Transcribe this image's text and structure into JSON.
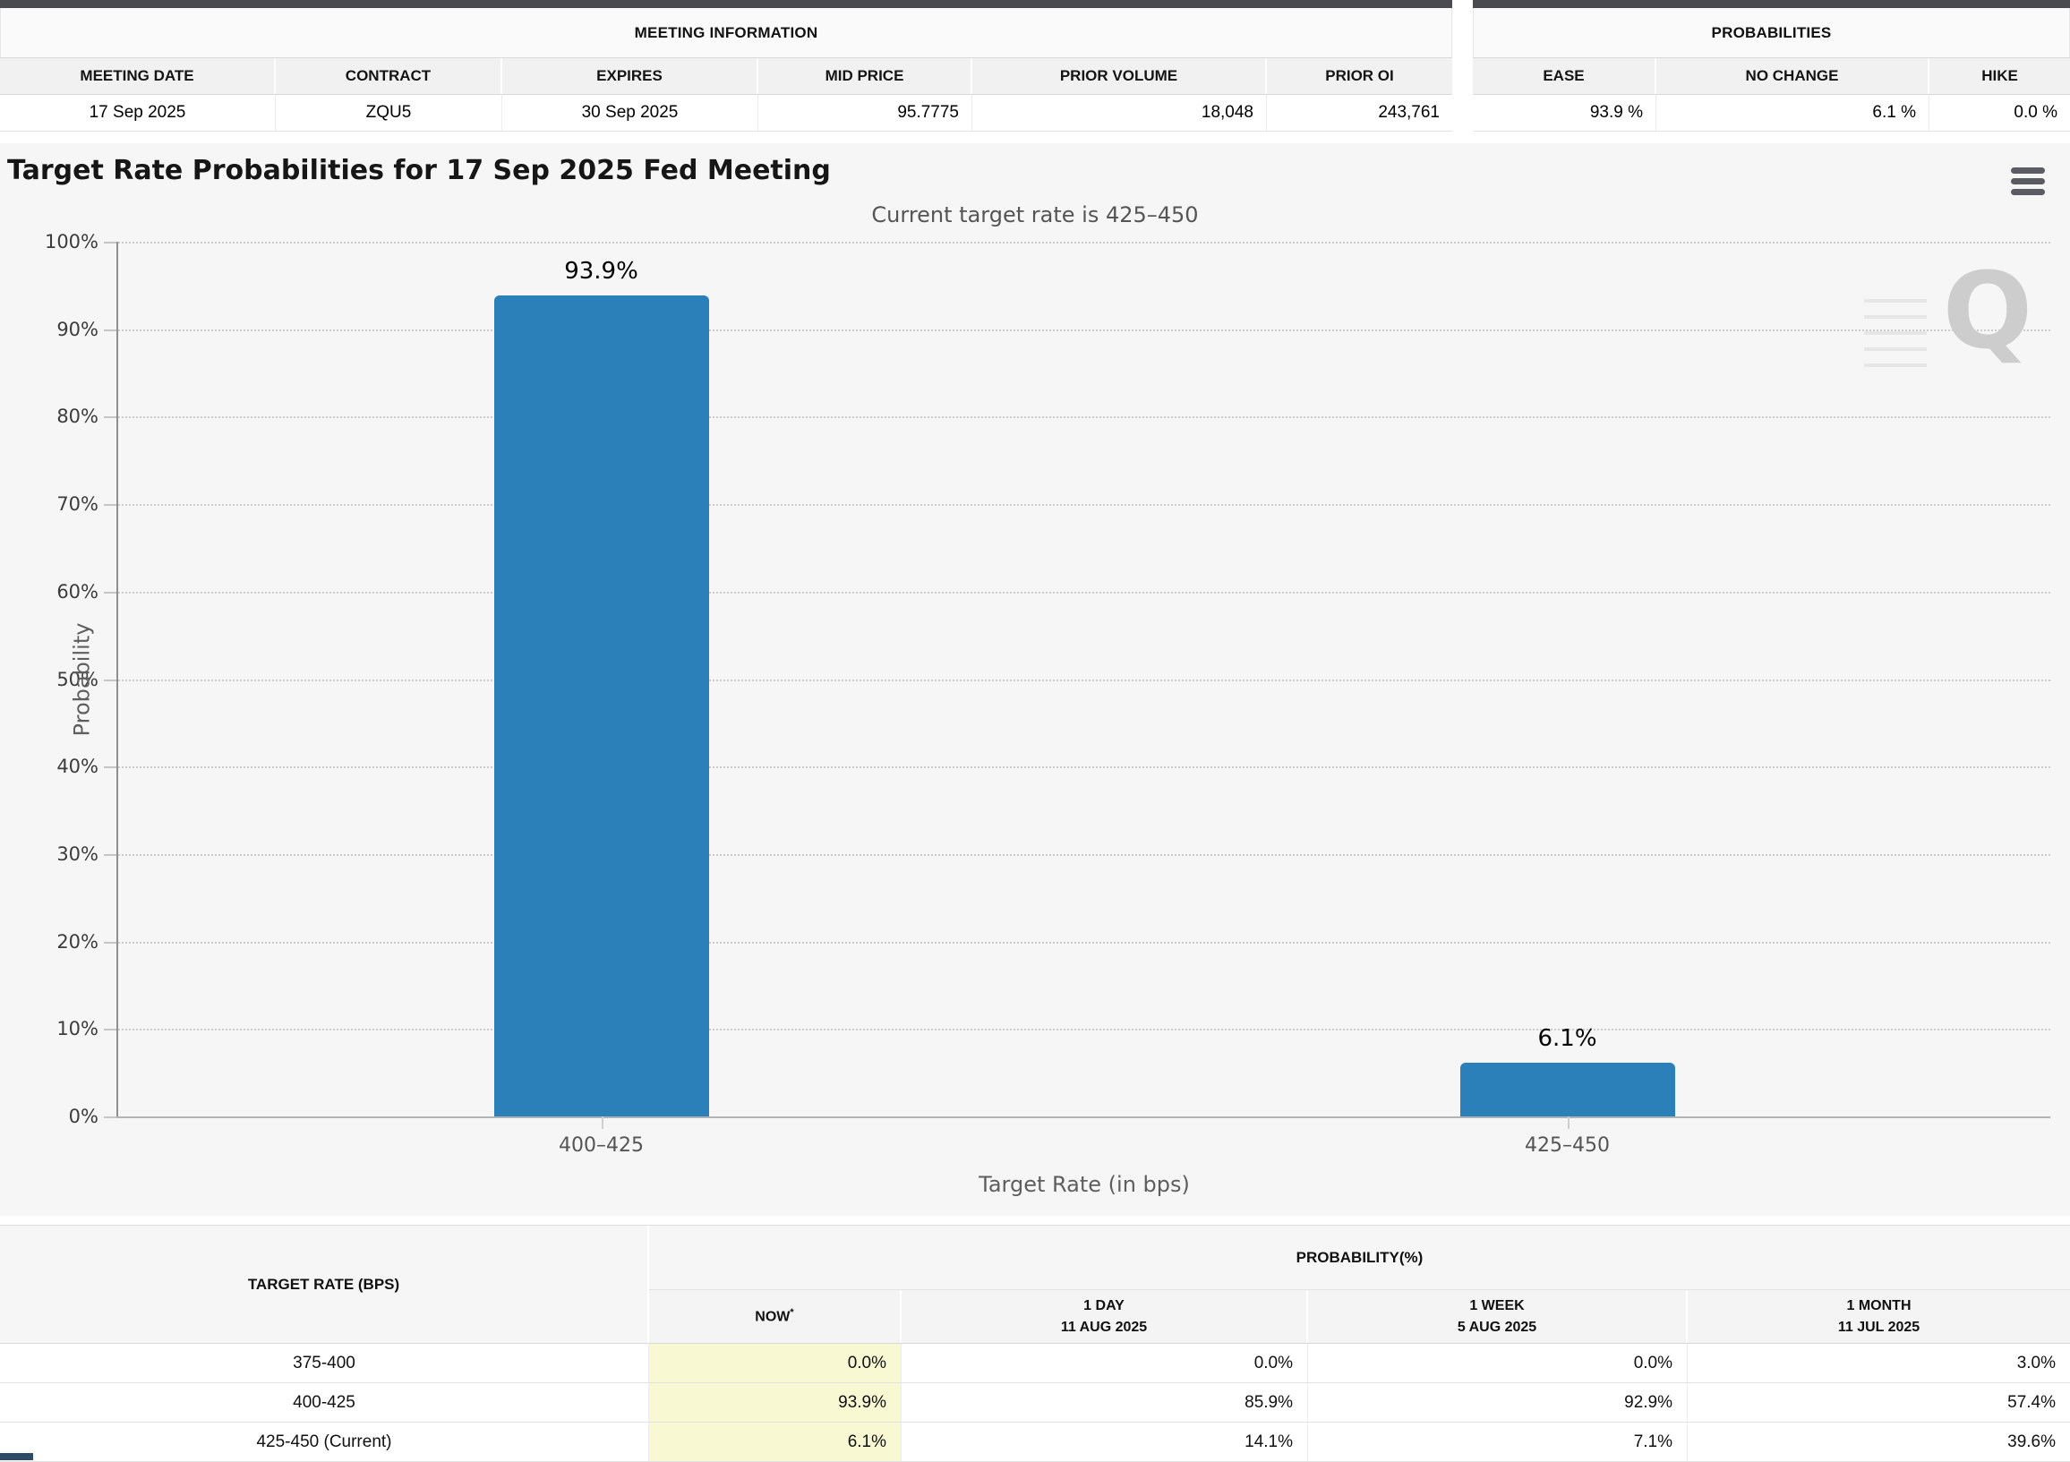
{
  "meeting_info": {
    "title": "MEETING INFORMATION",
    "columns": [
      "MEETING DATE",
      "CONTRACT",
      "EXPIRES",
      "MID PRICE",
      "PRIOR VOLUME",
      "PRIOR OI"
    ],
    "row": {
      "meeting_date": "17 Sep 2025",
      "contract": "ZQU5",
      "expires": "30 Sep 2025",
      "mid_price": "95.7775",
      "prior_volume": "18,048",
      "prior_oi": "243,761"
    }
  },
  "probabilities": {
    "title": "PROBABILITIES",
    "columns": [
      "EASE",
      "NO CHANGE",
      "HIKE"
    ],
    "row": {
      "ease": "93.9 %",
      "no_change": "6.1 %",
      "hike": "0.0 %"
    }
  },
  "chart_data": {
    "type": "bar",
    "title": "Target Rate Probabilities for 17 Sep 2025 Fed Meeting",
    "subtitle": "Current target rate is 425–450",
    "categories": [
      "400–425",
      "425–450"
    ],
    "values": [
      93.9,
      6.1
    ],
    "data_labels": [
      "93.9%",
      "6.1%"
    ],
    "xlabel": "Target Rate (in bps)",
    "ylabel": "Probability",
    "ylim": [
      0,
      100
    ],
    "yticks": [
      "0%",
      "10%",
      "20%",
      "30%",
      "40%",
      "50%",
      "60%",
      "70%",
      "80%",
      "90%",
      "100%"
    ],
    "grid": "horizontal-dotted",
    "legend": "none",
    "bar_color": "#2b80b9",
    "watermark_letter": "Q"
  },
  "probability_table": {
    "corner_header": "TARGET RATE (BPS)",
    "group_header": "PROBABILITY(%)",
    "columns": [
      {
        "label": "NOW",
        "sup": "*",
        "sub": ""
      },
      {
        "label": "1 DAY",
        "sup": "",
        "sub": "11 AUG 2025"
      },
      {
        "label": "1 WEEK",
        "sup": "",
        "sub": "5 AUG 2025"
      },
      {
        "label": "1 MONTH",
        "sup": "",
        "sub": "11 JUL 2025"
      }
    ],
    "rows": [
      {
        "rate": "375-400",
        "now": "0.0%",
        "one_day": "0.0%",
        "one_week": "0.0%",
        "one_month": "3.0%"
      },
      {
        "rate": "400-425",
        "now": "93.9%",
        "one_day": "85.9%",
        "one_week": "92.9%",
        "one_month": "57.4%"
      },
      {
        "rate": "425-450 (Current)",
        "now": "6.1%",
        "one_day": "14.1%",
        "one_week": "7.1%",
        "one_month": "39.6%"
      }
    ]
  }
}
